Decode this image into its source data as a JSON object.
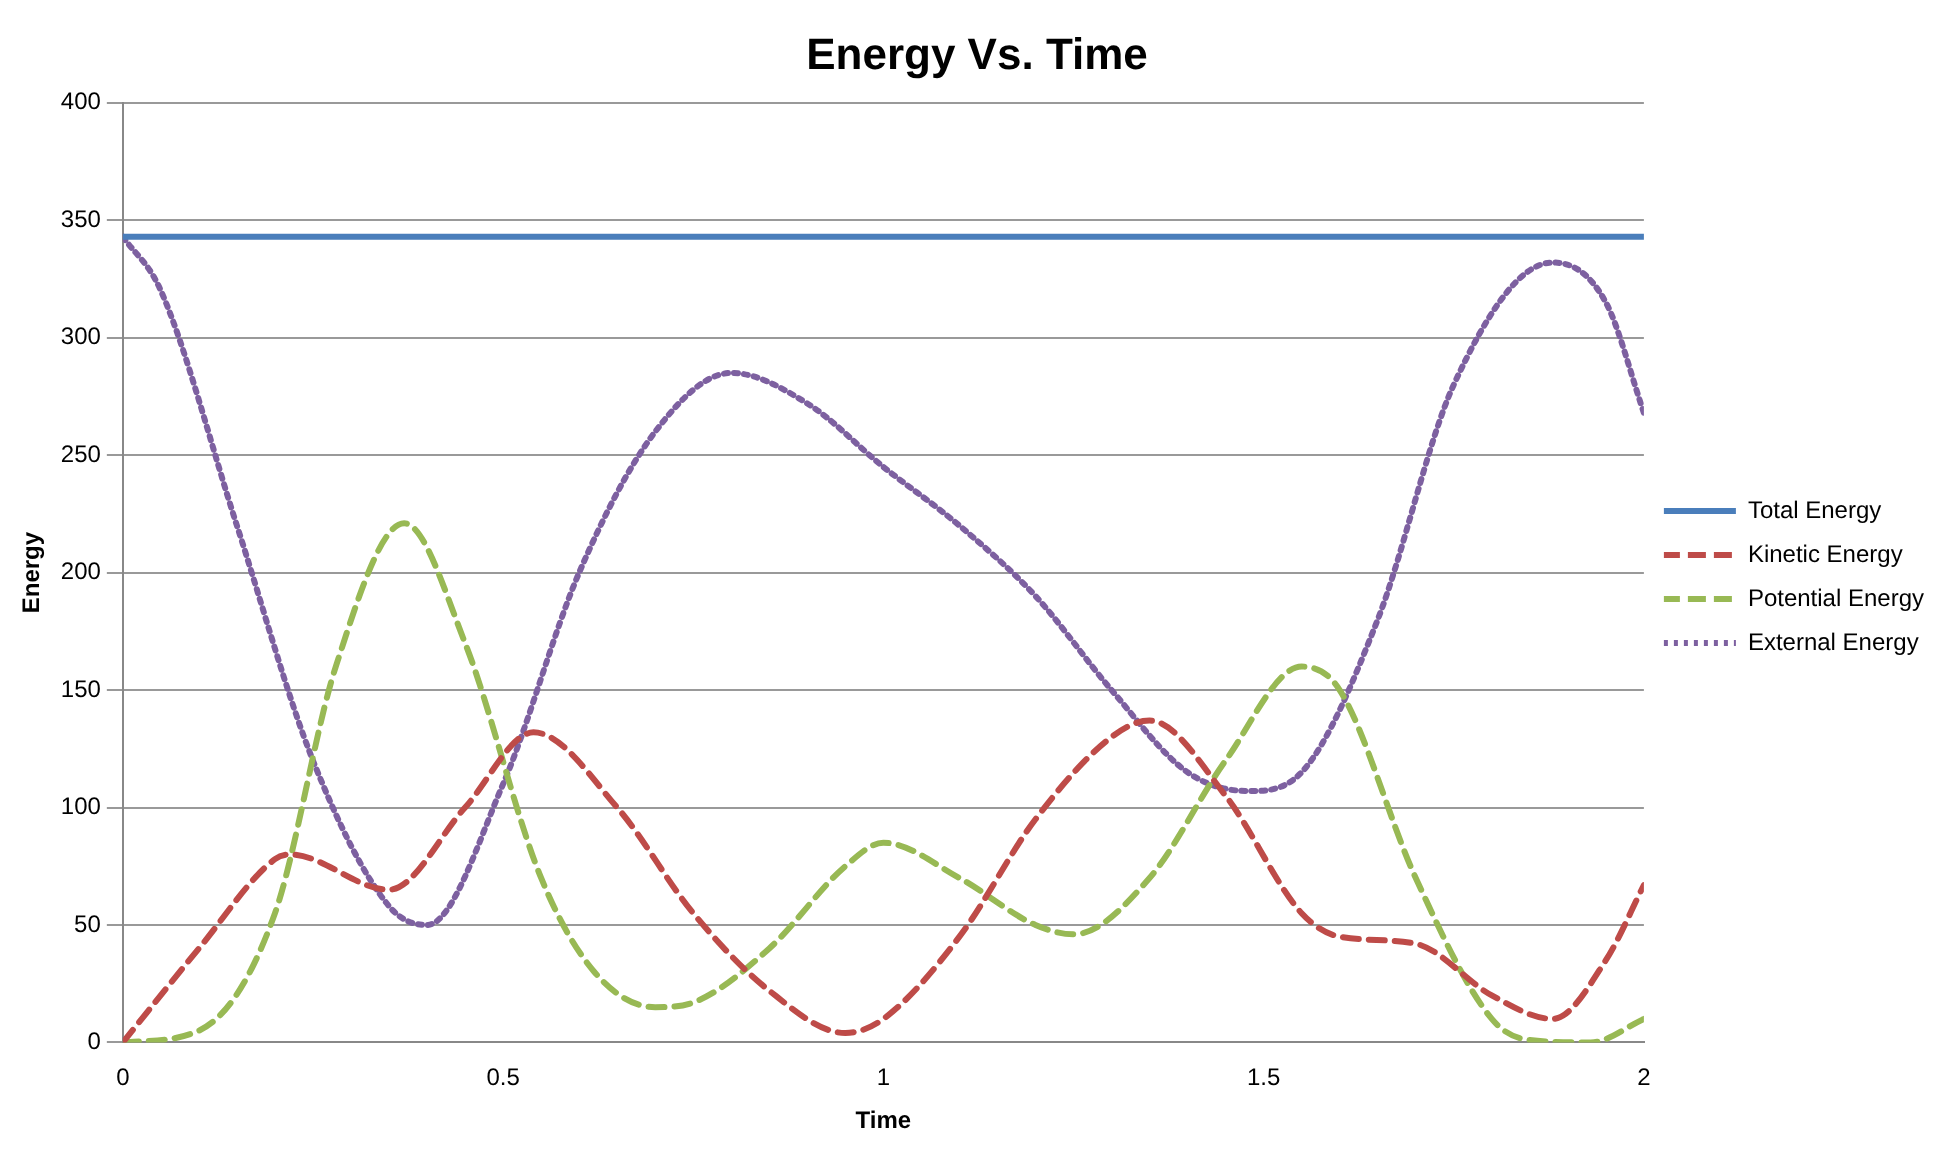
{
  "chart_data": {
    "type": "line",
    "title": "Energy Vs. Time",
    "xlabel": "Time",
    "ylabel": "Energy",
    "xlim": [
      0,
      2
    ],
    "xticks": [
      0,
      0.5,
      1,
      1.5,
      2
    ],
    "ylim": [
      0,
      400
    ],
    "yticks": [
      0,
      50,
      100,
      150,
      200,
      250,
      300,
      350,
      400
    ],
    "grid": "y",
    "legend": "right",
    "marker": "none",
    "series": [
      {
        "name": "Total Energy",
        "color": "#4a7ebb",
        "line_style": "solid",
        "x": [
          0,
          2
        ],
        "values": [
          343,
          343
        ]
      },
      {
        "name": "Kinetic Energy",
        "color": "#be4b48",
        "line_style": "dashed",
        "x": [
          0,
          0.1,
          0.2,
          0.22,
          0.35,
          0.45,
          0.54,
          0.65,
          0.75,
          0.85,
          0.95,
          1.0,
          1.1,
          1.2,
          1.3,
          1.35,
          1.45,
          1.55,
          1.6,
          1.7,
          1.8,
          1.88,
          1.95,
          2
        ],
        "values": [
          0,
          40,
          78,
          80,
          65,
          100,
          132,
          100,
          55,
          22,
          4,
          10,
          45,
          95,
          130,
          137,
          105,
          55,
          45,
          42,
          20,
          10,
          35,
          67
        ]
      },
      {
        "name": "Potential Energy",
        "color": "#98b954",
        "line_style": "dashed",
        "x": [
          0,
          0.1,
          0.2,
          0.28,
          0.37,
          0.45,
          0.55,
          0.62,
          0.7,
          0.75,
          0.85,
          0.95,
          1.0,
          1.1,
          1.2,
          1.25,
          1.35,
          1.45,
          1.55,
          1.6,
          1.7,
          1.8,
          1.85,
          1.93,
          2
        ],
        "values": [
          0,
          5,
          55,
          160,
          221,
          170,
          70,
          30,
          15,
          17,
          40,
          75,
          85,
          70,
          50,
          46,
          70,
          120,
          160,
          150,
          70,
          10,
          1,
          0,
          10
        ]
      },
      {
        "name": "External Energy",
        "color": "#7d60a0",
        "line_style": "dotted",
        "x": [
          0,
          0.05,
          0.15,
          0.25,
          0.35,
          0.4,
          0.5,
          0.6,
          0.7,
          0.8,
          0.9,
          1.0,
          1.1,
          1.2,
          1.3,
          1.4,
          1.48,
          1.55,
          1.65,
          1.75,
          1.88,
          1.95,
          2
        ],
        "values": [
          343,
          320,
          220,
          120,
          58,
          50,
          110,
          200,
          260,
          285,
          272,
          245,
          220,
          190,
          150,
          115,
          107,
          115,
          180,
          280,
          332,
          315,
          268
        ]
      }
    ]
  }
}
